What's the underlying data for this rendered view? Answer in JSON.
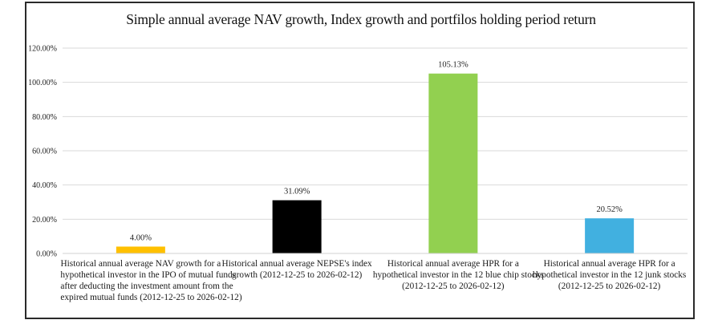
{
  "chart_data": {
    "type": "bar",
    "title": "Simple annual average NAV growth, Index growth and portfilos holding period return",
    "xlabel": "",
    "ylabel": "",
    "ylim": [
      0,
      120
    ],
    "yticks": [
      0,
      20,
      40,
      60,
      80,
      100,
      120
    ],
    "ytick_labels": [
      "0.00%",
      "20.00%",
      "40.00%",
      "60.00%",
      "80.00%",
      "100.00%",
      "120.00%"
    ],
    "grid": true,
    "legend": "none",
    "categories": [
      "Historical annual average NAV growth for a hypothetical investor in the IPO of mutual funds after deducting the investment amount  from the expired mutual funds  (2012-12-25 to 2026-02-12)",
      "Historical annual average NEPSE's index growth (2012-12-25 to 2026-02-12)",
      "Historical annual average HPR  for a hypothetical investor in the 12 blue chip stocks (2012-12-25 to 2026-02-12)",
      "Historical annual average HPR  for a hypothetical investor in the 12 junk stocks (2012-12-25 to 2026-02-12)"
    ],
    "category_lines": [
      [
        "Historical annual average NAV growth for a",
        "hypothetical investor in the IPO of mutual funds",
        "after deducting the investment amount  from the",
        "expired mutual funds  (2012-12-25 to 2026-02-12)"
      ],
      [
        "Historical annual average NEPSE's index",
        "growth (2012-12-25 to 2026-02-12)"
      ],
      [
        "Historical annual average HPR  for a",
        "hypothetical investor in the 12 blue chip stocks",
        "(2012-12-25 to 2026-02-12)"
      ],
      [
        "Historical annual average HPR  for a",
        "hypothetical investor in the 12 junk stocks",
        "(2012-12-25 to 2026-02-12)"
      ]
    ],
    "values": [
      4.0,
      31.09,
      105.13,
      20.52
    ],
    "data_labels": [
      "4.00%",
      "31.09%",
      "105.13%",
      "20.52%"
    ],
    "colors": [
      "#ffc000",
      "#000000",
      "#92d050",
      "#41b0e0"
    ]
  }
}
